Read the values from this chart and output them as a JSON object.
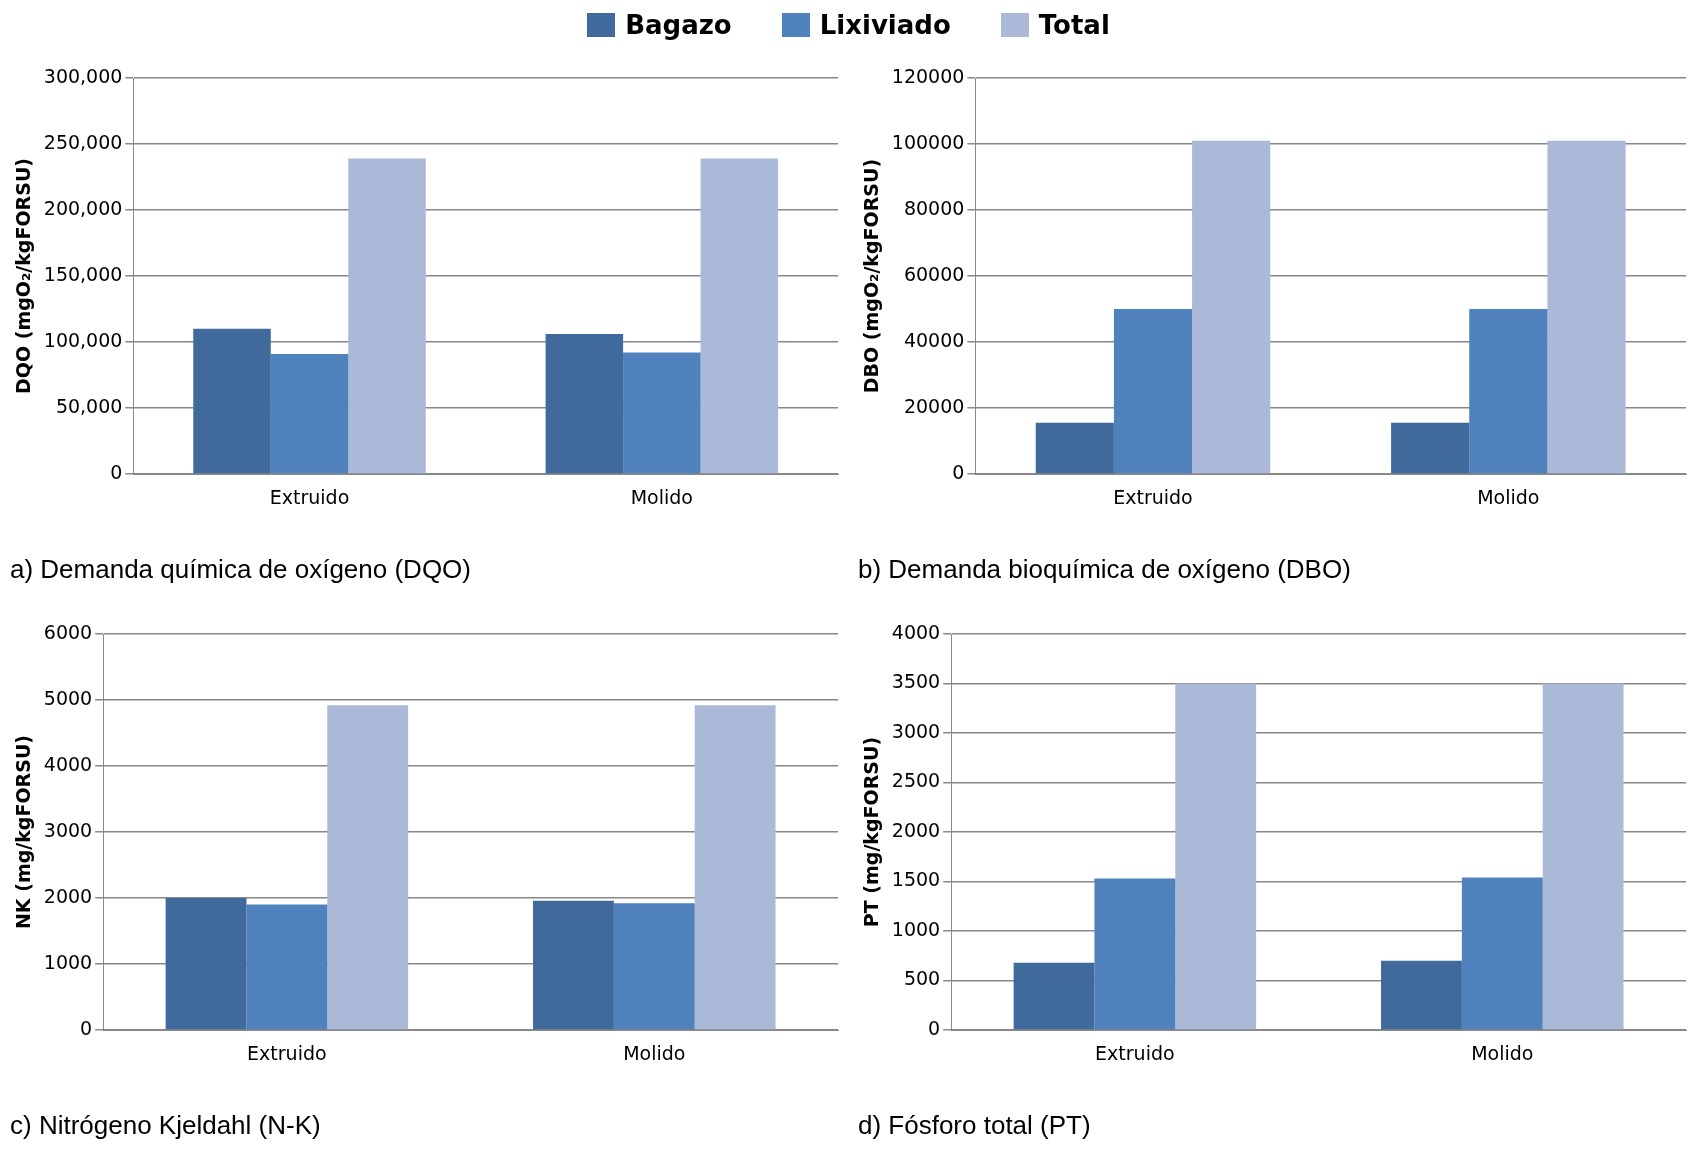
{
  "chart_data": [
    {
      "type": "bar",
      "title": "a) Demanda química de oxígeno (DQO)",
      "ylabel": "DQO (mgO₂/kgFORSU)",
      "categories": [
        "Extruido",
        "Molido"
      ],
      "legend": "top",
      "grid": "y",
      "ylim": [
        0,
        300000
      ],
      "yticks": [
        {
          "value": 0,
          "label": "0"
        },
        {
          "value": 50000,
          "label": "50,000"
        },
        {
          "value": 100000,
          "label": "100,000"
        },
        {
          "value": 150000,
          "label": "150,000"
        },
        {
          "value": 200000,
          "label": "200,000"
        },
        {
          "value": 250000,
          "label": "250,000"
        },
        {
          "value": 300000,
          "label": "300,000"
        }
      ],
      "series": [
        {
          "name": "Bagazo",
          "color": "#406a9c",
          "values": [
            110000,
            106000
          ]
        },
        {
          "name": "Lixiviado",
          "color": "#4f81bd",
          "values": [
            91000,
            92000
          ]
        },
        {
          "name": "Total",
          "color": "#aab9d8",
          "values": [
            239000,
            239000
          ]
        }
      ]
    },
    {
      "type": "bar",
      "title": "b) Demanda bioquímica de oxígeno (DBO)",
      "ylabel": "DBO (mgO₂/kgFORSU)",
      "categories": [
        "Extruido",
        "Molido"
      ],
      "grid": "y",
      "ylim": [
        0,
        120000
      ],
      "yticks": [
        0,
        20000,
        40000,
        60000,
        80000,
        100000,
        120000
      ],
      "series": [
        {
          "color": "#406a9c",
          "values": [
            15500,
            15500
          ]
        },
        {
          "color": "#4f81bd",
          "values": [
            50000,
            50000
          ]
        },
        {
          "color": "#aab9d8",
          "values": [
            101000,
            101000
          ]
        }
      ]
    },
    {
      "type": "bar",
      "title": "c) Nitrógeno Kjeldahl (N-K)",
      "ylabel": "NK (mg/kgFORSU)",
      "categories": [
        "Extruido",
        "Molido"
      ],
      "grid": "y",
      "ylim": [
        0,
        6000
      ],
      "yticks": [
        0,
        1000,
        2000,
        3000,
        4000,
        5000,
        6000
      ],
      "series": [
        {
          "color": "#406a9c",
          "values": [
            2000,
            1960
          ]
        },
        {
          "color": "#4f81bd",
          "values": [
            1900,
            1920
          ]
        },
        {
          "color": "#aab9d8",
          "values": [
            4920,
            4920
          ]
        }
      ]
    },
    {
      "type": "bar",
      "title": "d) Fósforo total (PT)",
      "ylabel": "PT (mg/kgFORSU)",
      "categories": [
        "Extruido",
        "Molido"
      ],
      "grid": "y",
      "ylim": [
        0,
        4000
      ],
      "yticks": [
        0,
        500,
        1000,
        1500,
        2000,
        2500,
        3000,
        3500,
        4000
      ],
      "series": [
        {
          "color": "#406a9c",
          "values": [
            680,
            700
          ]
        },
        {
          "color": "#4f81bd",
          "values": [
            1530,
            1540
          ]
        },
        {
          "color": "#aab9d8",
          "values": [
            3500,
            3500
          ]
        }
      ]
    }
  ]
}
